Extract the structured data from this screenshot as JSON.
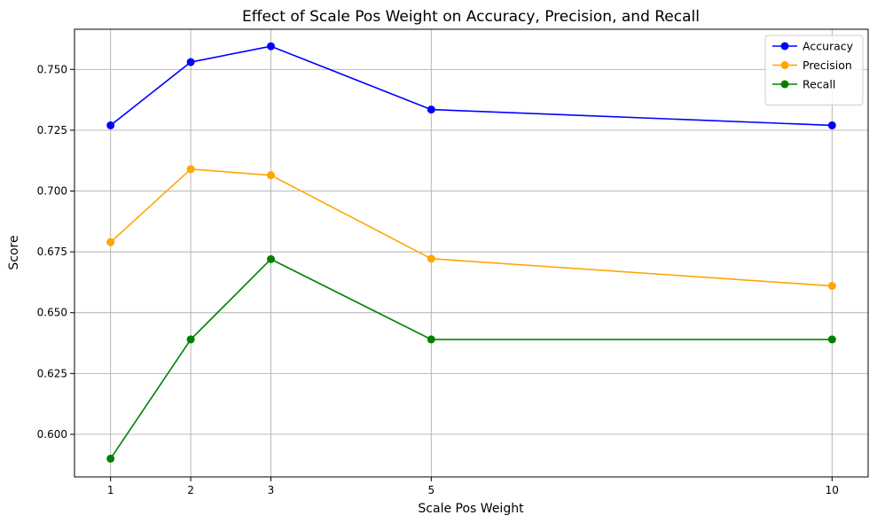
{
  "chart_data": {
    "type": "line",
    "title": "Effect of Scale Pos Weight on Accuracy, Precision, and Recall",
    "xlabel": "Scale Pos Weight",
    "ylabel": "Score",
    "x": [
      1,
      2,
      3,
      5,
      10
    ],
    "x_ticks": [
      1,
      2,
      3,
      5,
      10
    ],
    "y_ticks": [
      0.6,
      0.625,
      0.65,
      0.675,
      0.7,
      0.725,
      0.75
    ],
    "y_tick_labels": [
      "0.600",
      "0.625",
      "0.650",
      "0.675",
      "0.700",
      "0.725",
      "0.750"
    ],
    "xlim": [
      0.55,
      10.45
    ],
    "ylim": [
      0.5825,
      0.7665
    ],
    "grid": true,
    "legend_position": "top-right",
    "series": [
      {
        "name": "Accuracy",
        "color": "#0000ff",
        "values": [
          0.727,
          0.753,
          0.7595,
          0.7335,
          0.727
        ]
      },
      {
        "name": "Precision",
        "color": "#ffa500",
        "values": [
          0.679,
          0.709,
          0.7065,
          0.6722,
          0.661
        ]
      },
      {
        "name": "Recall",
        "color": "#008000",
        "values": [
          0.59,
          0.639,
          0.672,
          0.639,
          0.639
        ]
      }
    ]
  }
}
